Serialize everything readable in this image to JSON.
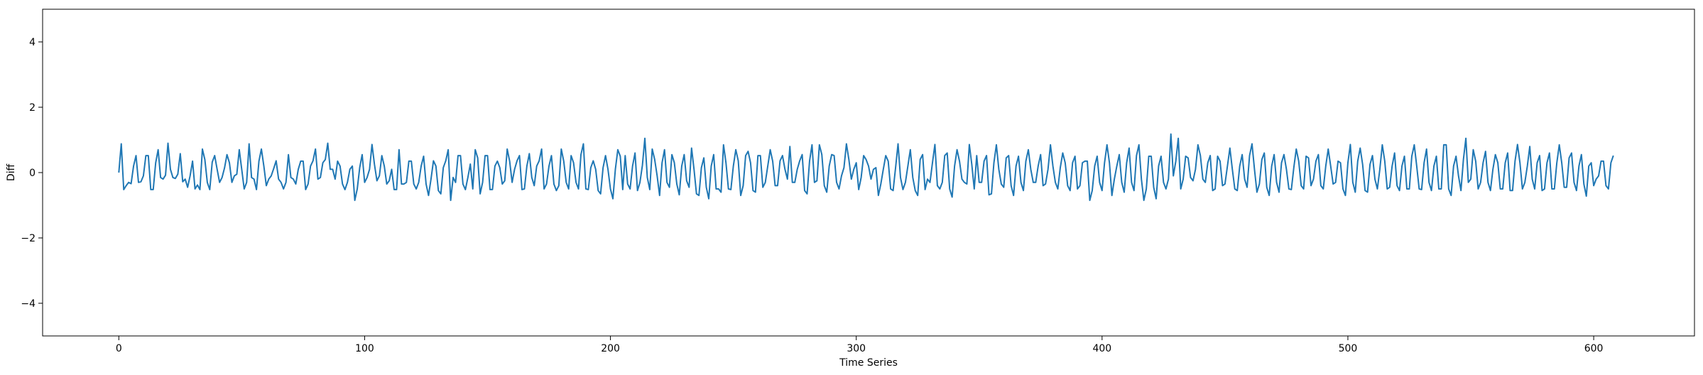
{
  "chart_data": {
    "type": "line",
    "title": "",
    "xlabel": "Time Series",
    "ylabel": "Diff",
    "xlim": [
      -31,
      641
    ],
    "ylim": [
      -5,
      5
    ],
    "x_ticks": [
      0,
      100,
      200,
      300,
      400,
      500,
      600
    ],
    "y_ticks": [
      -4,
      -2,
      0,
      2,
      4
    ],
    "grid": false,
    "legend": "none",
    "series": [
      {
        "color": "#1f77b4",
        "x_start": 0,
        "x_step": 1,
        "values": [
          0.0,
          0.88,
          -0.52,
          -0.4,
          -0.3,
          -0.34,
          0.2,
          0.52,
          -0.3,
          -0.28,
          -0.1,
          0.52,
          0.52,
          -0.52,
          -0.52,
          0.3,
          0.7,
          -0.15,
          -0.2,
          -0.08,
          0.9,
          0.1,
          -0.15,
          -0.18,
          -0.05,
          0.58,
          -0.28,
          -0.2,
          -0.45,
          -0.1,
          0.35,
          -0.5,
          -0.38,
          -0.52,
          0.72,
          0.4,
          -0.3,
          -0.52,
          0.32,
          0.52,
          0.1,
          -0.3,
          -0.15,
          0.14,
          0.55,
          0.3,
          -0.3,
          -0.1,
          -0.05,
          0.7,
          0.1,
          -0.5,
          -0.3,
          0.88,
          -0.15,
          -0.2,
          -0.52,
          0.35,
          0.72,
          0.2,
          -0.4,
          -0.2,
          -0.1,
          0.12,
          0.36,
          -0.2,
          -0.3,
          -0.5,
          -0.3,
          0.55,
          -0.15,
          -0.2,
          -0.35,
          0.1,
          0.35,
          0.35,
          -0.52,
          -0.35,
          0.2,
          0.36,
          0.72,
          -0.2,
          -0.15,
          0.3,
          0.4,
          0.9,
          0.1,
          0.1,
          -0.2,
          0.35,
          0.2,
          -0.35,
          -0.52,
          -0.3,
          0.1,
          0.2,
          -0.85,
          -0.5,
          0.15,
          0.55,
          -0.3,
          -0.15,
          0.1,
          0.86,
          0.25,
          -0.25,
          -0.1,
          0.52,
          0.2,
          -0.35,
          -0.25,
          0.1,
          -0.52,
          -0.52,
          0.7,
          -0.35,
          -0.35,
          -0.3,
          0.35,
          0.35,
          -0.35,
          -0.5,
          -0.3,
          0.2,
          0.5,
          -0.35,
          -0.7,
          -0.2,
          0.36,
          0.2,
          -0.55,
          -0.65,
          0.15,
          0.36,
          0.7,
          -0.85,
          -0.15,
          -0.3,
          0.52,
          0.52,
          -0.35,
          -0.52,
          -0.15,
          0.26,
          -0.5,
          0.7,
          0.45,
          -0.65,
          -0.3,
          0.52,
          0.52,
          -0.52,
          -0.52,
          0.2,
          0.35,
          0.15,
          -0.35,
          -0.25,
          0.72,
          0.35,
          -0.3,
          0.1,
          0.36,
          0.52,
          -0.52,
          -0.5,
          0.2,
          0.58,
          -0.15,
          -0.4,
          0.2,
          0.36,
          0.72,
          -0.5,
          -0.35,
          0.2,
          0.52,
          -0.35,
          -0.55,
          -0.4,
          0.72,
          0.35,
          -0.3,
          -0.5,
          0.52,
          0.3,
          -0.3,
          -0.5,
          0.55,
          0.88,
          -0.5,
          -0.52,
          0.15,
          0.36,
          0.1,
          -0.55,
          -0.65,
          0.15,
          0.52,
          0.1,
          -0.5,
          -0.8,
          0.1,
          0.7,
          0.5,
          -0.52,
          0.52,
          -0.35,
          -0.5,
          0.2,
          0.6,
          -0.55,
          -0.3,
          0.22,
          1.05,
          -0.15,
          -0.52,
          0.72,
          0.4,
          -0.1,
          -0.7,
          0.3,
          0.7,
          -0.3,
          -0.45,
          0.55,
          0.3,
          -0.35,
          -0.68,
          0.2,
          0.55,
          -0.25,
          -0.45,
          0.75,
          0.1,
          -0.65,
          -0.7,
          0.15,
          0.45,
          -0.45,
          -0.8,
          0.2,
          0.55,
          -0.5,
          -0.5,
          -0.6,
          0.85,
          0.3,
          -0.5,
          -0.52,
          0.2,
          0.7,
          0.36,
          -0.7,
          -0.4,
          0.52,
          0.65,
          0.3,
          -0.55,
          -0.6,
          0.52,
          0.52,
          -0.45,
          -0.3,
          0.2,
          0.7,
          0.35,
          -0.4,
          -0.4,
          0.36,
          0.52,
          0.1,
          -0.2,
          0.8,
          -0.3,
          -0.3,
          0.1,
          0.36,
          0.55,
          -0.55,
          -0.65,
          0.35,
          0.85,
          -0.3,
          -0.25,
          0.85,
          0.55,
          -0.4,
          -0.6,
          0.2,
          0.55,
          0.52,
          -0.3,
          -0.5,
          -0.1,
          0.15,
          0.88,
          0.4,
          -0.2,
          0.1,
          0.3,
          -0.52,
          -0.15,
          0.52,
          0.4,
          0.2,
          -0.2,
          0.1,
          0.15,
          -0.7,
          -0.35,
          0.1,
          0.52,
          0.35,
          -0.5,
          -0.55,
          0.15,
          0.88,
          -0.15,
          -0.52,
          -0.3,
          0.2,
          0.7,
          -0.15,
          -0.55,
          -0.7,
          0.4,
          0.55,
          -0.52,
          -0.2,
          -0.3,
          0.3,
          0.86,
          -0.4,
          -0.5,
          -0.3,
          0.52,
          0.6,
          -0.5,
          -0.75,
          0.2,
          0.7,
          0.35,
          -0.2,
          -0.3,
          -0.35,
          0.86,
          0.25,
          -0.5,
          0.52,
          -0.3,
          -0.3,
          0.35,
          0.52,
          -0.68,
          -0.65,
          0.3,
          0.85,
          0.1,
          -0.35,
          -0.45,
          0.45,
          0.52,
          -0.4,
          -0.7,
          0.2,
          0.5,
          -0.3,
          -0.55,
          0.35,
          0.7,
          0.1,
          -0.3,
          -0.3,
          0.2,
          0.55,
          -0.4,
          -0.35,
          0.1,
          0.85,
          0.2,
          -0.3,
          -0.5,
          0.15,
          0.6,
          0.3,
          -0.4,
          -0.55,
          0.3,
          0.5,
          -0.5,
          -0.4,
          0.3,
          0.35,
          0.35,
          -0.85,
          -0.55,
          0.2,
          0.5,
          -0.3,
          -0.55,
          0.3,
          0.85,
          0.3,
          -0.7,
          -0.2,
          0.2,
          0.55,
          -0.3,
          -0.6,
          0.3,
          0.75,
          -0.3,
          -0.55,
          0.52,
          0.85,
          -0.2,
          -0.85,
          -0.5,
          0.5,
          0.5,
          -0.45,
          -0.8,
          0.2,
          0.5,
          -0.3,
          -0.5,
          -0.2,
          1.18,
          -0.1,
          0.35,
          1.05,
          -0.5,
          -0.2,
          0.5,
          0.45,
          -0.15,
          -0.25,
          0.1,
          0.85,
          0.52,
          -0.2,
          -0.3,
          0.3,
          0.52,
          -0.55,
          -0.5,
          0.5,
          0.35,
          -0.4,
          -0.35,
          0.2,
          0.75,
          0.1,
          -0.5,
          -0.55,
          0.2,
          0.55,
          -0.2,
          -0.45,
          0.52,
          0.88,
          0.1,
          -0.6,
          -0.35,
          0.4,
          0.6,
          -0.45,
          -0.7,
          0.2,
          0.55,
          -0.3,
          -0.6,
          0.3,
          0.55,
          0.1,
          -0.5,
          -0.52,
          0.15,
          0.72,
          0.35,
          -0.4,
          -0.5,
          0.5,
          0.45,
          -0.4,
          -0.2,
          0.35,
          0.55,
          -0.4,
          -0.5,
          0.2,
          0.72,
          0.2,
          -0.35,
          -0.3,
          0.35,
          0.3,
          -0.5,
          -0.7,
          0.3,
          0.86,
          -0.3,
          -0.6,
          0.35,
          0.75,
          0.25,
          -0.55,
          -0.6,
          0.25,
          0.52,
          -0.2,
          -0.5,
          0.1,
          0.85,
          0.35,
          -0.5,
          -0.45,
          0.2,
          0.6,
          -0.4,
          -0.55,
          0.2,
          0.5,
          -0.5,
          -0.5,
          0.5,
          0.85,
          0.2,
          -0.5,
          -0.52,
          0.3,
          0.72,
          -0.3,
          -0.55,
          0.2,
          0.5,
          -0.5,
          -0.5,
          0.85,
          0.85,
          -0.5,
          -0.7,
          0.2,
          0.5,
          -0.1,
          -0.55,
          0.4,
          1.05,
          -0.3,
          -0.2,
          0.7,
          0.35,
          -0.5,
          -0.3,
          0.3,
          0.65,
          -0.3,
          -0.55,
          0.1,
          0.55,
          0.3,
          -0.5,
          -0.5,
          0.3,
          0.6,
          -0.55,
          -0.55,
          0.35,
          0.86,
          0.3,
          -0.5,
          -0.3,
          0.2,
          0.8,
          -0.2,
          -0.5,
          0.3,
          0.52,
          -0.55,
          -0.5,
          0.3,
          0.6,
          -0.5,
          -0.5,
          0.3,
          0.85,
          0.3,
          -0.45,
          -0.45,
          0.45,
          0.6,
          -0.3,
          -0.55,
          0.2,
          0.55,
          -0.35,
          -0.72,
          0.2,
          0.3,
          -0.4,
          -0.2,
          -0.1,
          0.35,
          0.35,
          -0.4,
          -0.5,
          0.3,
          0.52
        ]
      }
    ]
  }
}
